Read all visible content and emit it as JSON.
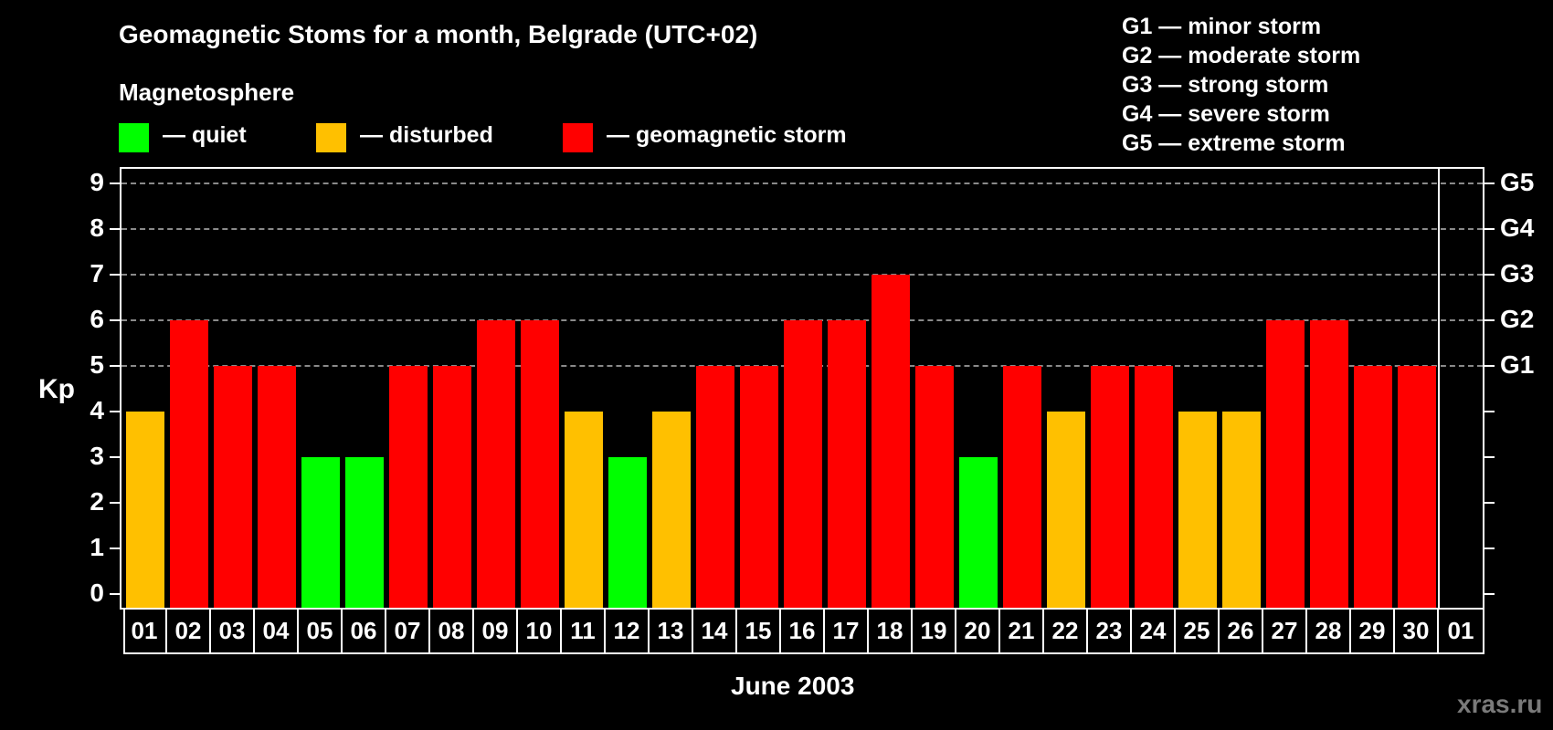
{
  "title": "Geomagnetic Stoms for a month, Belgrade (UTC+02)",
  "subtitle": "Magnetosphere",
  "legend": [
    {
      "label": "— quiet",
      "color": "#00FF00"
    },
    {
      "label": "— disturbed",
      "color": "#FFC000"
    },
    {
      "label": "— geomagnetic storm",
      "color": "#FF0000"
    }
  ],
  "storm_scale": [
    "G1 — minor storm",
    "G2 — moderate storm",
    "G3 — strong storm",
    "G4 — severe storm",
    "G5 — extreme storm"
  ],
  "y_axis_label": "Kp",
  "x_axis_label": "June 2003",
  "watermark": "xras.ru",
  "colors": {
    "quiet": "#00FF00",
    "disturbed": "#FFC000",
    "storm": "#FF0000",
    "grid": "#8a8a8a",
    "background": "#000000"
  },
  "chart_data": {
    "type": "bar",
    "title": "Geomagnetic Stoms for a month, Belgrade (UTC+02)",
    "xlabel": "June 2003",
    "ylabel": "Kp",
    "ylim": [
      0,
      9
    ],
    "yticks": [
      0,
      1,
      2,
      3,
      4,
      5,
      6,
      7,
      8,
      9
    ],
    "right_axis_ticks": {
      "5": "G1",
      "6": "G2",
      "7": "G3",
      "8": "G4",
      "9": "G5"
    },
    "grid": "horizontal dashed at Kp 5-9",
    "categories": [
      "01",
      "02",
      "03",
      "04",
      "05",
      "06",
      "07",
      "08",
      "09",
      "10",
      "11",
      "12",
      "13",
      "14",
      "15",
      "16",
      "17",
      "18",
      "19",
      "20",
      "21",
      "22",
      "23",
      "24",
      "25",
      "26",
      "27",
      "28",
      "29",
      "30",
      "01"
    ],
    "values": [
      4,
      6,
      5,
      5,
      3,
      3,
      5,
      5,
      6,
      6,
      4,
      3,
      4,
      5,
      5,
      6,
      6,
      7,
      5,
      3,
      5,
      4,
      5,
      5,
      4,
      4,
      6,
      6,
      5,
      5,
      null
    ],
    "status": [
      "disturbed",
      "storm",
      "storm",
      "storm",
      "quiet",
      "quiet",
      "storm",
      "storm",
      "storm",
      "storm",
      "disturbed",
      "quiet",
      "disturbed",
      "storm",
      "storm",
      "storm",
      "storm",
      "storm",
      "storm",
      "quiet",
      "storm",
      "disturbed",
      "storm",
      "storm",
      "disturbed",
      "disturbed",
      "storm",
      "storm",
      "storm",
      "storm",
      null
    ],
    "legend": [
      "quiet",
      "disturbed",
      "geomagnetic storm"
    ],
    "legend_position": "top"
  }
}
